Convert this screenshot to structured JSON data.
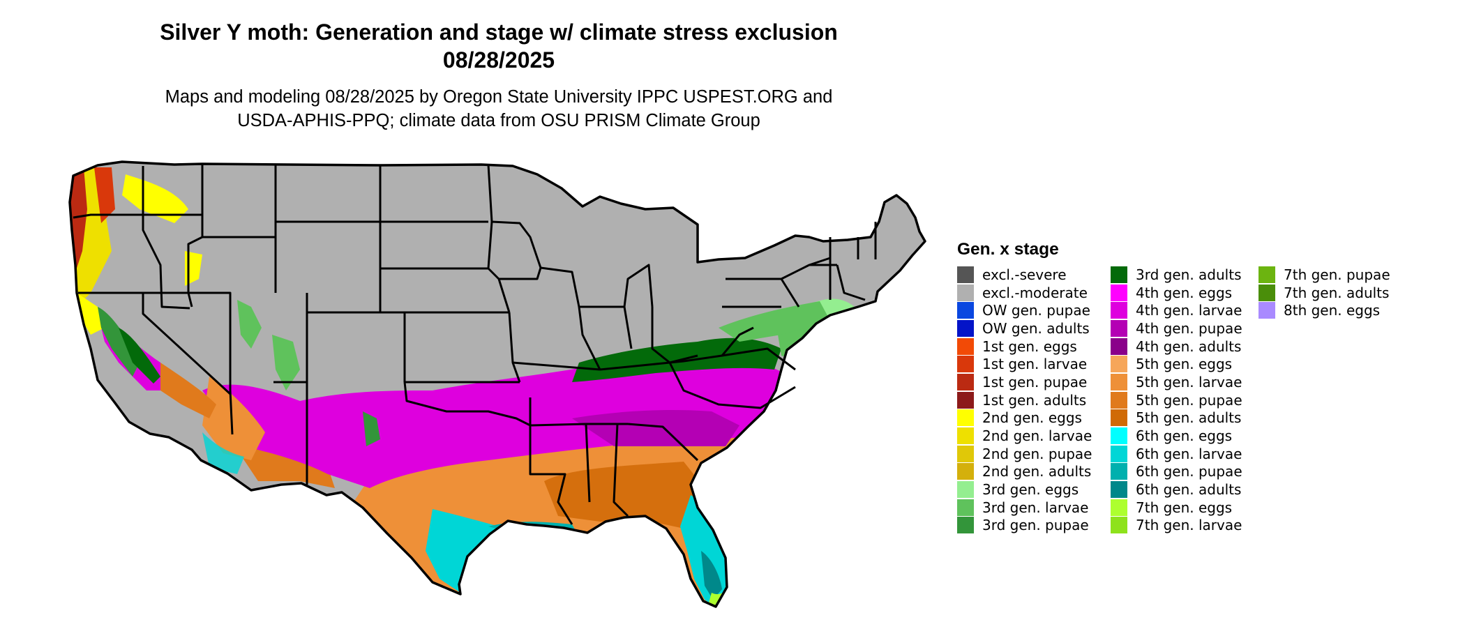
{
  "title": {
    "line1": "Silver Y moth: Generation and stage w/ climate stress exclusion",
    "line2": "08/28/2025"
  },
  "subtitle": {
    "line1": "Maps and modeling 08/28/2025 by Oregon State University IPPC USPEST.ORG and",
    "line2": "USDA-APHIS-PPQ; climate data from OSU PRISM Climate Group"
  },
  "map": {
    "region": "Contiguous United States",
    "excluded_color": "#b0b0b0",
    "border_color": "#000000"
  },
  "legend": {
    "title": "Gen. x stage",
    "columns": [
      [
        {
          "label": "excl.-severe",
          "color": "#555555"
        },
        {
          "label": "excl.-moderate",
          "color": "#b0b0b0"
        },
        {
          "label": "OW gen. pupae",
          "color": "#0a47e0"
        },
        {
          "label": "OW gen. adults",
          "color": "#0414c8"
        },
        {
          "label": "1st gen. eggs",
          "color": "#f24a06"
        },
        {
          "label": "1st gen. larvae",
          "color": "#d9380b"
        },
        {
          "label": "1st gen. pupae",
          "color": "#bb2a12"
        },
        {
          "label": "1st gen. adults",
          "color": "#8c1a1a"
        },
        {
          "label": "2nd gen. eggs",
          "color": "#ffff00"
        },
        {
          "label": "2nd gen. larvae",
          "color": "#eee000"
        },
        {
          "label": "2nd gen. pupae",
          "color": "#e0c808"
        },
        {
          "label": "2nd gen. adults",
          "color": "#d4b00c"
        },
        {
          "label": "3rd gen. eggs",
          "color": "#94ee90"
        },
        {
          "label": "3rd gen. larvae",
          "color": "#5fc25c"
        },
        {
          "label": "3rd gen. pupae",
          "color": "#33953a"
        }
      ],
      [
        {
          "label": "3rd gen. adults",
          "color": "#036a0a"
        },
        {
          "label": "4th gen. eggs",
          "color": "#ff00ff"
        },
        {
          "label": "4th gen. larvae",
          "color": "#de00de"
        },
        {
          "label": "4th gen. pupae",
          "color": "#b400b4"
        },
        {
          "label": "4th gen. adults",
          "color": "#8a008a"
        },
        {
          "label": "5th gen. eggs",
          "color": "#f6a65a"
        },
        {
          "label": "5th gen. larvae",
          "color": "#ee9038"
        },
        {
          "label": "5th gen. pupae",
          "color": "#e07a1c"
        },
        {
          "label": "5th gen. adults",
          "color": "#d06a06"
        },
        {
          "label": "6th gen. eggs",
          "color": "#00ffff"
        },
        {
          "label": "6th gen. larvae",
          "color": "#00d6d6"
        },
        {
          "label": "6th gen. pupae",
          "color": "#00b0ae"
        },
        {
          "label": "6th gen. adults",
          "color": "#00888a"
        },
        {
          "label": "7th gen. eggs",
          "color": "#adff2f"
        },
        {
          "label": "7th gen. larvae",
          "color": "#8ee21c"
        }
      ],
      [
        {
          "label": "7th gen. pupae",
          "color": "#6cb410"
        },
        {
          "label": "7th gen. adults",
          "color": "#4a8e0a"
        },
        {
          "label": "8th gen. eggs",
          "color": "#a98aff"
        }
      ]
    ]
  }
}
